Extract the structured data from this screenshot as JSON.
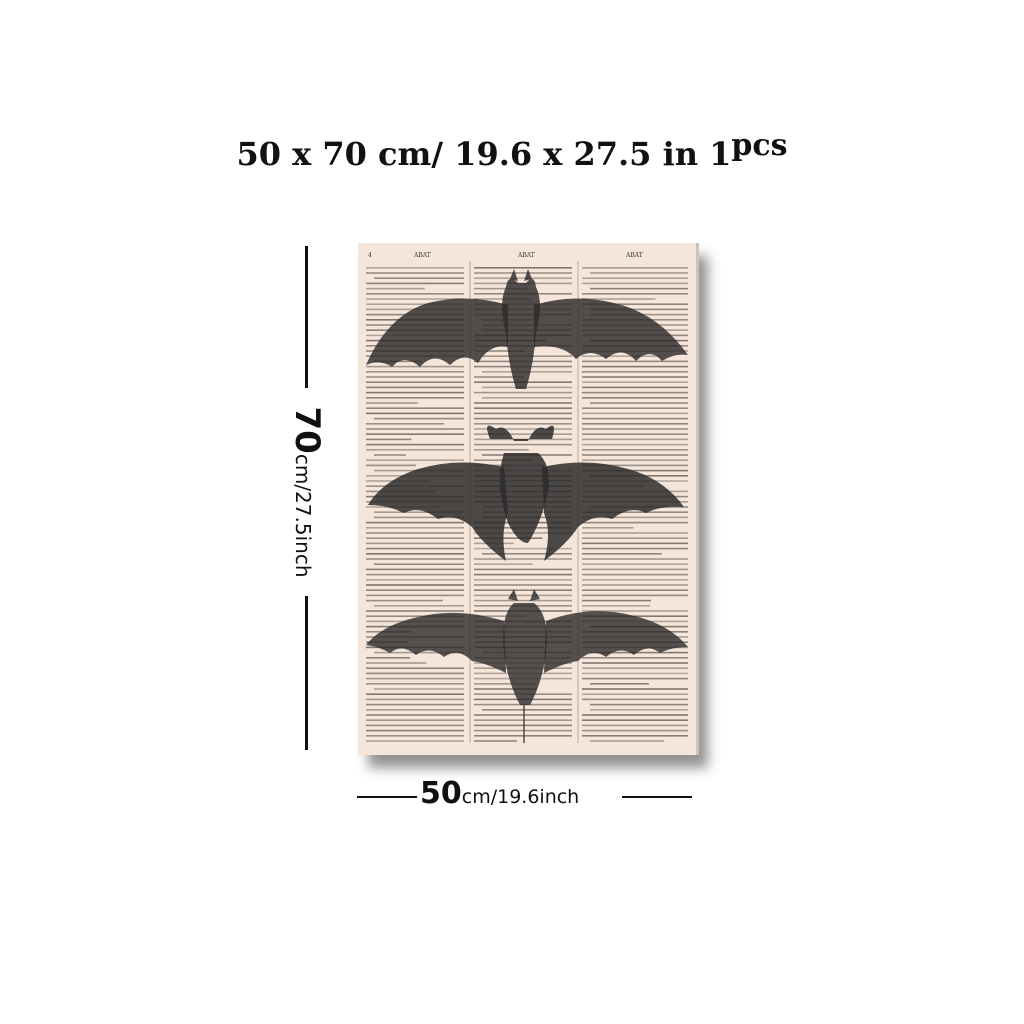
{
  "title": {
    "size_text": "50 x 70 cm/ 19.6 x 27.5 in",
    "quantity_number": "1",
    "quantity_unit": "pcs"
  },
  "height_dimension": {
    "value": "70",
    "unit": "cm/27.5inch"
  },
  "width_dimension": {
    "value": "50",
    "unit": "cm/19.6inch"
  },
  "print": {
    "header_left": "ABAT",
    "header_center": "ABAT",
    "header_right": "ABAT",
    "page_number": "4",
    "colors": {
      "paper": "#f6e6da",
      "bat": "#2d2b2b",
      "text": "#3a3633"
    }
  }
}
